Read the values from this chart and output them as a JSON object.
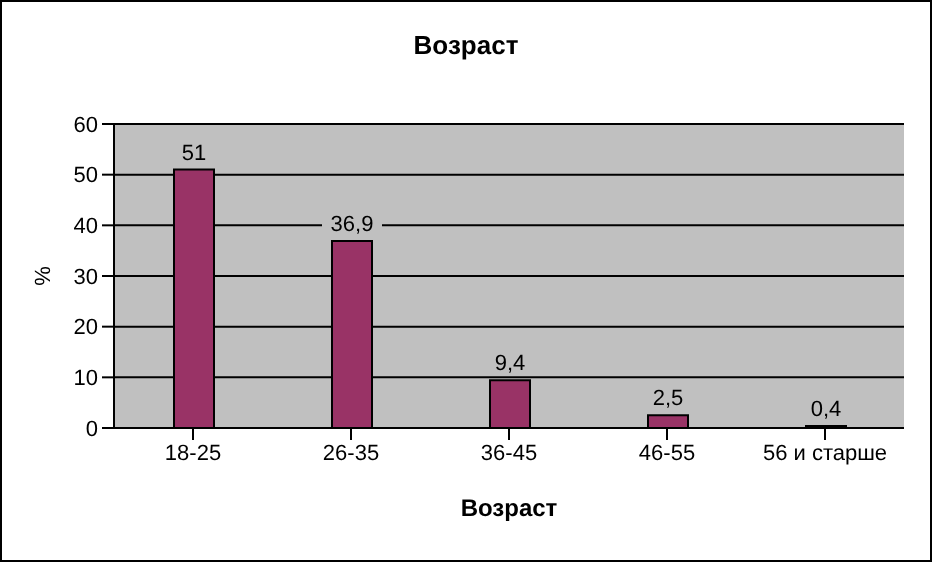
{
  "chart_data": {
    "type": "bar",
    "title": "Возраст",
    "xlabel": "Возраст",
    "ylabel": "%",
    "categories": [
      "18-25",
      "26-35",
      "36-45",
      "46-55",
      "56 и старше"
    ],
    "values": [
      51,
      36.9,
      9.4,
      2.5,
      0.4
    ],
    "value_labels": [
      "51",
      "36,9",
      "9,4",
      "2,5",
      "0,4"
    ],
    "color": "#993366",
    "ylim": [
      0,
      60
    ],
    "yticks": [
      0,
      10,
      20,
      30,
      40,
      50,
      60
    ],
    "grid": "y"
  }
}
